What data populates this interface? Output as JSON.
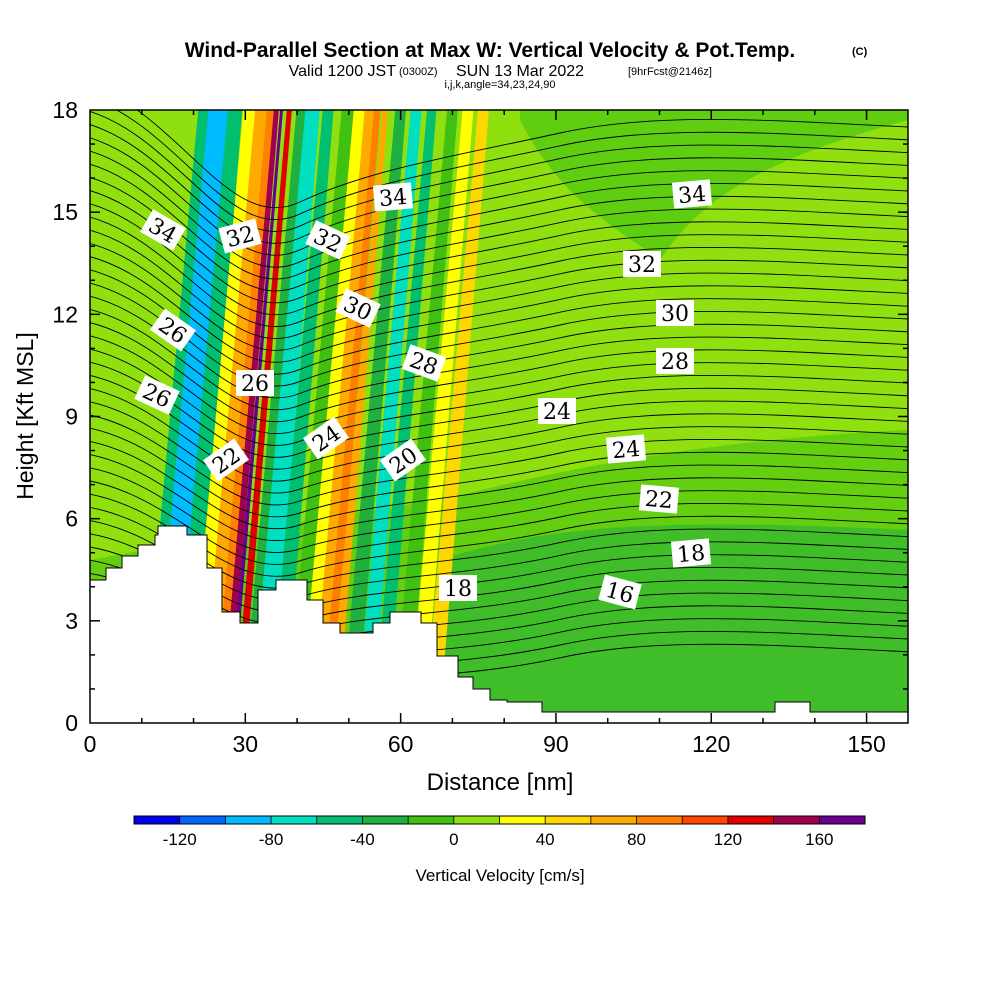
{
  "chart_data": {
    "type": "heatmap",
    "title": "Wind-Parallel Section at Max W: Vertical Velocity & Pot.Temp.",
    "title_mark": "(C)",
    "subtitle_main": "Valid 1200 JST",
    "subtitle_utc": "(0300Z)",
    "subtitle_date": "SUN 13 Mar 2022",
    "subtitle_fcst": "[9hrFcst@2146z]",
    "subtitle2": "i,j,k,angle=34,23,24,90",
    "xlabel": "Distance [nm]",
    "ylabel": "Height [Kft MSL]",
    "xlim": [
      0,
      158
    ],
    "ylim": [
      0,
      18
    ],
    "xticks": [
      "0",
      "30",
      "60",
      "90",
      "120",
      "150"
    ],
    "yticks": [
      "0",
      "3",
      "6",
      "9",
      "12",
      "15",
      "18"
    ],
    "colorbar": {
      "label": "Vertical Velocity [cm/s]",
      "tick_labels": [
        "-120",
        "-80",
        "-40",
        "0",
        "40",
        "80",
        "120",
        "160"
      ],
      "levels": [
        -140,
        -120,
        -100,
        -80,
        -60,
        -40,
        -20,
        0,
        20,
        40,
        60,
        80,
        100,
        120,
        140,
        160,
        180
      ],
      "colors": [
        "#0000ee",
        "#0066ff",
        "#00bbff",
        "#00e0c0",
        "#00c070",
        "#20b040",
        "#40c010",
        "#90e010",
        "#ffff00",
        "#ffd700",
        "#ffaa00",
        "#ff7f00",
        "#ff4500",
        "#e00000",
        "#a00050",
        "#6a0090"
      ]
    },
    "theta_contour_labels": [
      "34",
      "32",
      "32",
      "34",
      "34",
      "32",
      "30",
      "30",
      "26",
      "28",
      "28",
      "26",
      "26",
      "24",
      "24",
      "24",
      "22",
      "22",
      "20",
      "18",
      "18",
      "16"
    ],
    "w_columns": [
      {
        "x": 13,
        "w": 3,
        "v": -50
      },
      {
        "x": 15,
        "w": 3,
        "v": -90
      },
      {
        "x": 18,
        "w": 2,
        "v": -45
      },
      {
        "x": 21,
        "w": 2,
        "v": 20
      },
      {
        "x": 23,
        "w": 1.6,
        "v": 60
      },
      {
        "x": 25,
        "w": 1.2,
        "v": 95
      },
      {
        "x": 26,
        "w": 0.7,
        "v": 140
      },
      {
        "x": 27,
        "w": 0.4,
        "v": 165
      },
      {
        "x": 28.5,
        "w": 0.7,
        "v": 125
      },
      {
        "x": 31,
        "w": 1.6,
        "v": -35
      },
      {
        "x": 33,
        "w": 2,
        "v": -70
      },
      {
        "x": 36,
        "w": 1.5,
        "v": -60
      },
      {
        "x": 40,
        "w": 2,
        "v": -5
      },
      {
        "x": 42,
        "w": 1.5,
        "v": 35
      },
      {
        "x": 44,
        "w": 1.3,
        "v": 75
      },
      {
        "x": 45.5,
        "w": 0.9,
        "v": 88
      },
      {
        "x": 47,
        "w": 0.8,
        "v": 60
      },
      {
        "x": 50,
        "w": 1.5,
        "v": -30
      },
      {
        "x": 53,
        "w": 1.5,
        "v": -70
      },
      {
        "x": 56,
        "w": 1.3,
        "v": -45
      },
      {
        "x": 60,
        "w": 1.5,
        "v": -20
      },
      {
        "x": 63,
        "w": 1.5,
        "v": 35
      },
      {
        "x": 66,
        "w": 1.5,
        "v": 45
      }
    ]
  }
}
